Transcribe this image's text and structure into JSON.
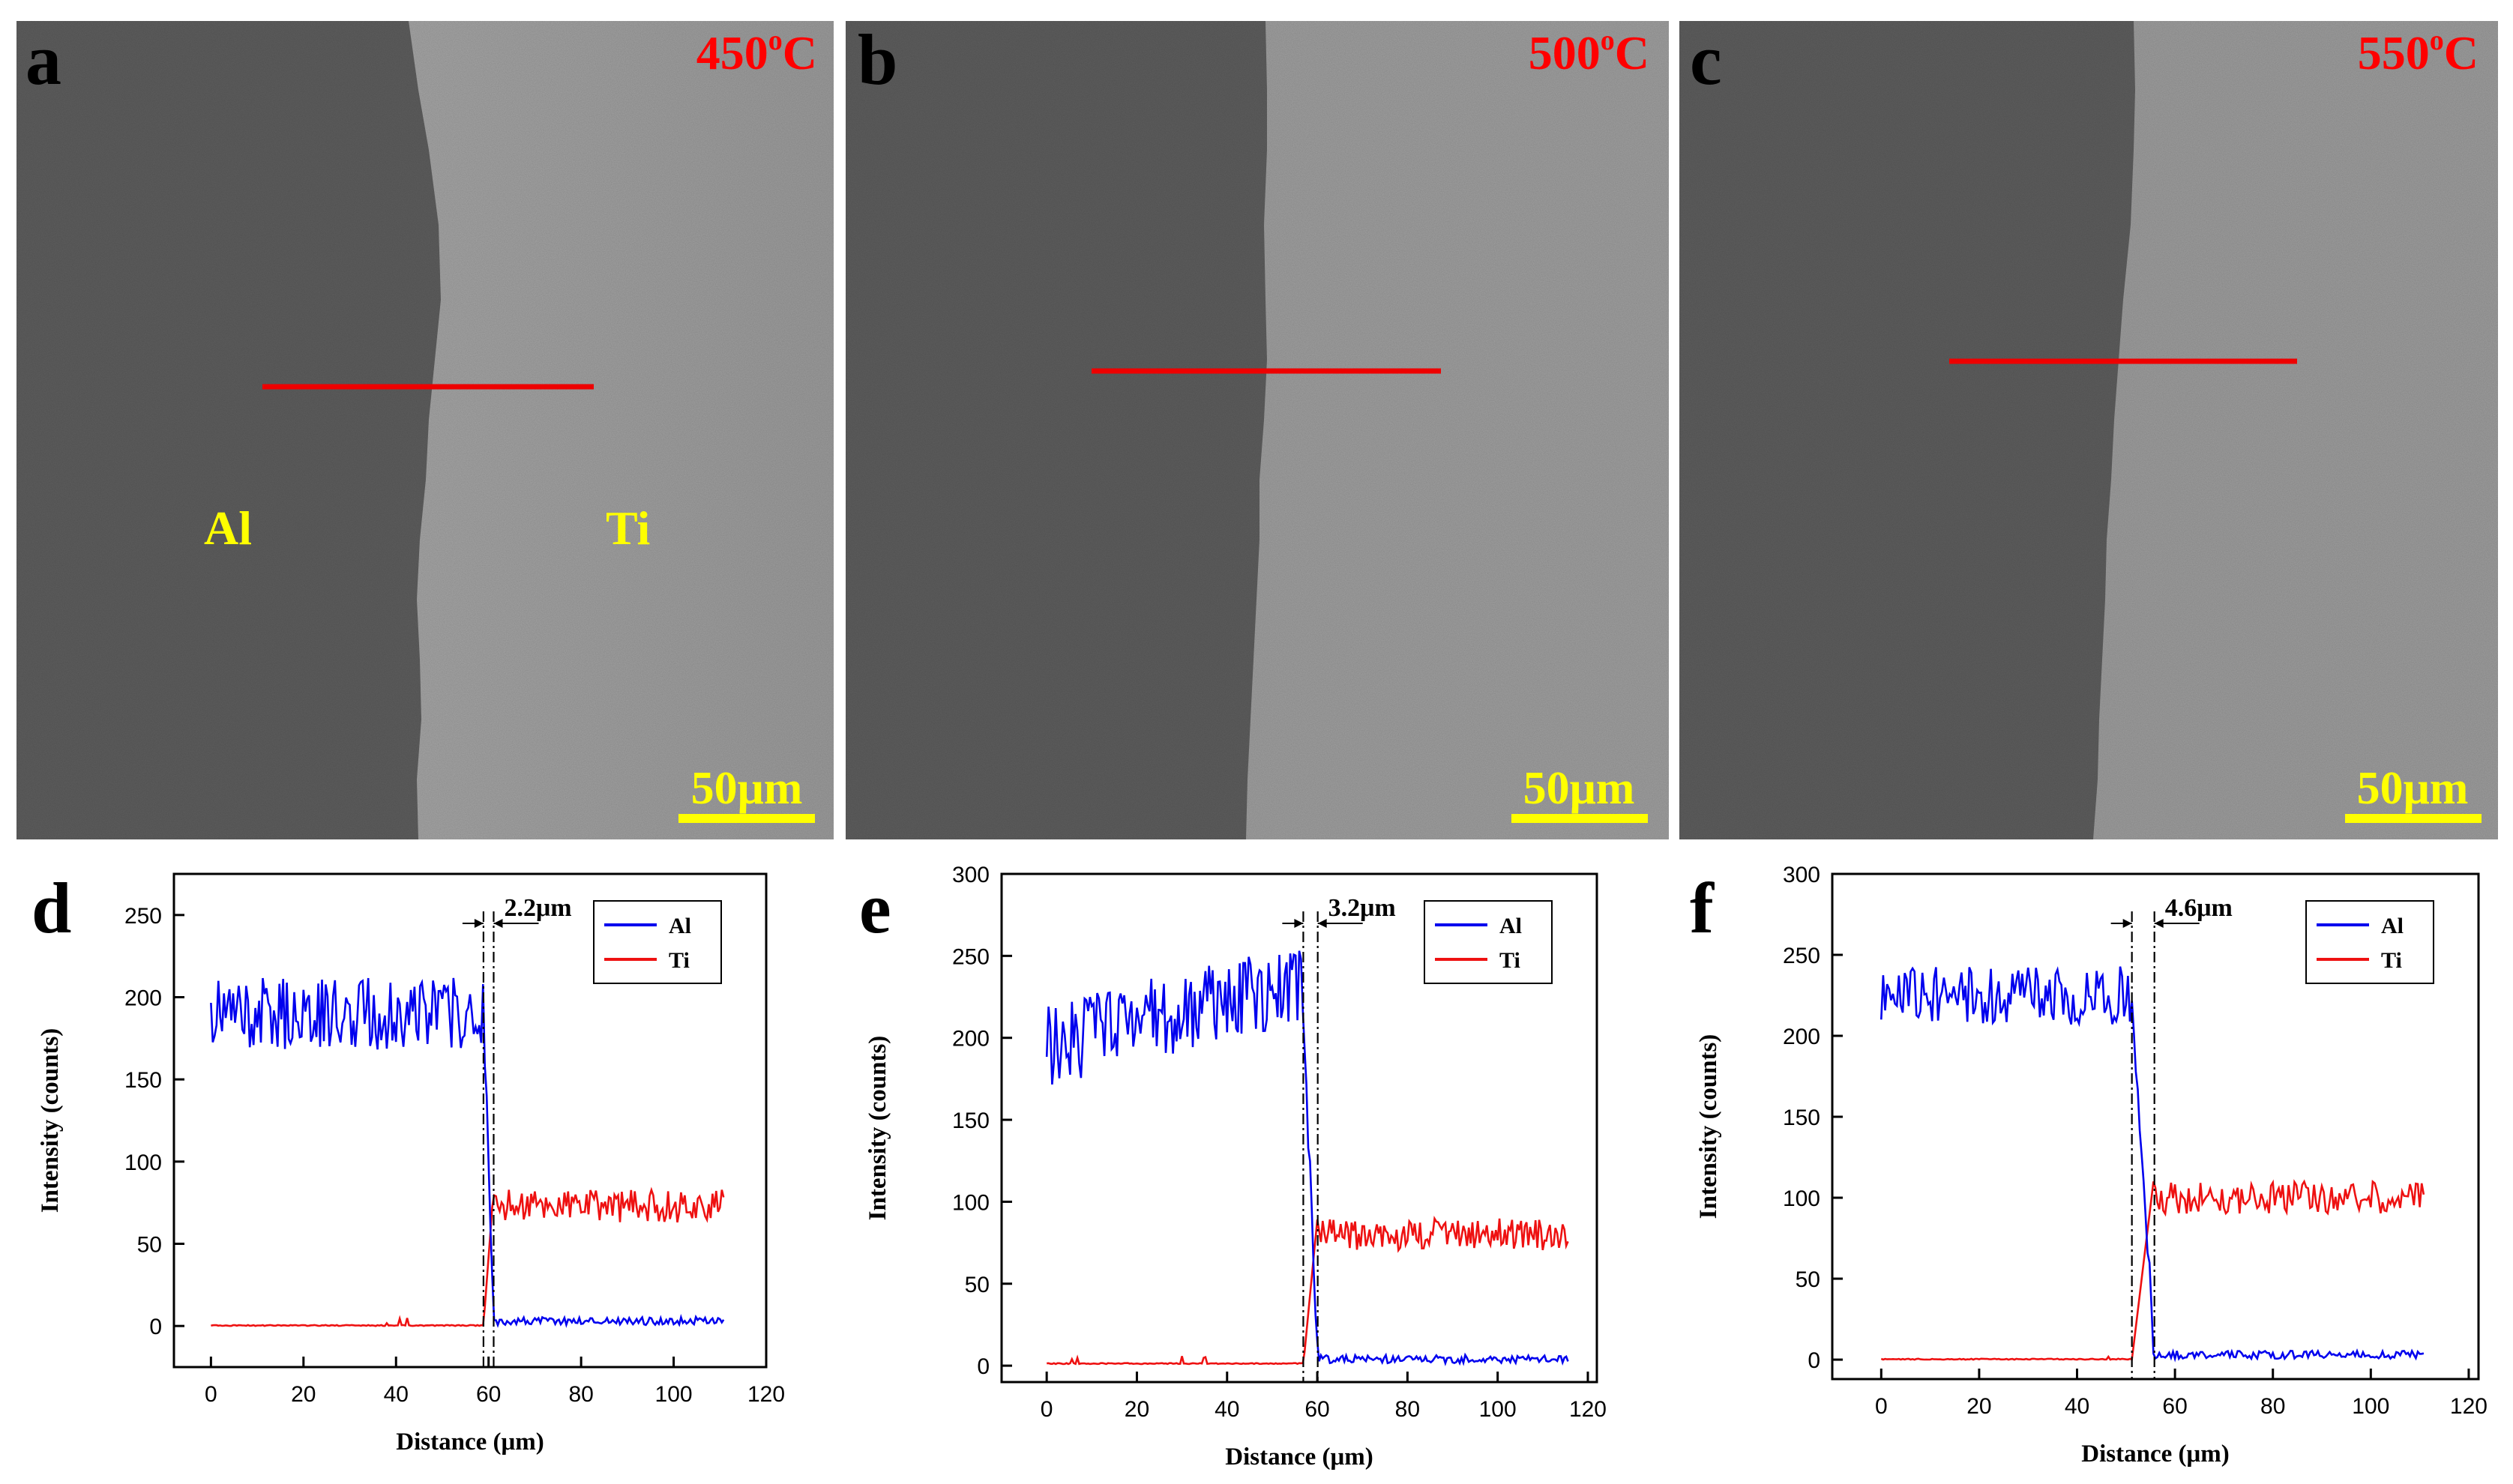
{
  "colors": {
    "al": "#0000ee",
    "ti": "#ee1111",
    "label": "#ff0000",
    "material_label": "#ffff00",
    "scalebar": "#ffff00",
    "line_scan": "#ee0000"
  },
  "panels_sem": [
    {
      "letter": "a",
      "temperature": "450°C",
      "temp_num": "450",
      "temp_sup": "o",
      "temp_unit": "C",
      "scalebar": "50μm",
      "materials": [
        "Al",
        "Ti"
      ]
    },
    {
      "letter": "b",
      "temperature": "500°C",
      "temp_num": "500",
      "temp_sup": "o",
      "temp_unit": "C",
      "scalebar": "50μm"
    },
    {
      "letter": "c",
      "temperature": "550°C",
      "temp_num": "550",
      "temp_sup": "o",
      "temp_unit": "C",
      "scalebar": "50μm"
    }
  ],
  "chart_data": [
    {
      "type": "line",
      "panel": "d",
      "xlabel": "Distance (μm)",
      "ylabel": "Intensity (counts)",
      "xlim": [
        -8,
        120
      ],
      "ylim": [
        -25,
        275
      ],
      "xticks": [
        0,
        20,
        40,
        60,
        80,
        100,
        120
      ],
      "yticks": [
        0,
        50,
        100,
        150,
        200,
        250
      ],
      "legend": [
        "Al",
        "Ti"
      ],
      "legend_position": "top-right",
      "interface_um": 60,
      "interface_width_um": 2.2,
      "annotation": "2.2μm",
      "x_max": 111,
      "al_left_mean": 190,
      "al_left_amp": 22,
      "al_right_mean": 3,
      "ti_left_mean": 0,
      "ti_right_mean": 73,
      "ti_right_amp": 10,
      "series": [
        {
          "name": "Al",
          "desc": "~190 counts for 0-58 μm, drops to ~3 counts after 61 μm"
        },
        {
          "name": "Ti",
          "desc": "~0 counts for 0-58 μm, rises to ~73 counts after 61 μm"
        }
      ]
    },
    {
      "type": "line",
      "panel": "e",
      "xlabel": "Distance (μm)",
      "ylabel": "Intensity (counts)",
      "xlim": [
        -10,
        122
      ],
      "ylim": [
        -10,
        300
      ],
      "xticks": [
        0,
        20,
        40,
        60,
        80,
        100,
        120
      ],
      "yticks": [
        0,
        50,
        100,
        150,
        200,
        250,
        300
      ],
      "legend": [
        "Al",
        "Ti"
      ],
      "legend_position": "top-right",
      "interface_um": 58.5,
      "interface_width_um": 3.2,
      "annotation": "3.2μm",
      "x_max": 116,
      "al_left_mean": 215,
      "al_left_amp": 25,
      "al_left_trend": "rising 195 to 235",
      "al_right_mean": 4,
      "ti_left_mean": 1,
      "ti_right_mean": 80,
      "ti_right_amp": 10,
      "series": [
        {
          "name": "Al",
          "desc": "rises from ~195 to ~235 counts over 0-57 μm, drops to ~4 counts after 60 μm"
        },
        {
          "name": "Ti",
          "desc": "~1 count for 0-57 μm, rises to ~80 counts after 60 μm"
        }
      ]
    },
    {
      "type": "line",
      "panel": "f",
      "xlabel": "Distance (μm)",
      "ylabel": "Intensity (counts)",
      "xlim": [
        -10,
        122
      ],
      "ylim": [
        -12,
        300
      ],
      "xticks": [
        0,
        20,
        40,
        60,
        80,
        100,
        120
      ],
      "yticks": [
        0,
        50,
        100,
        150,
        200,
        250,
        300
      ],
      "legend": [
        "Al",
        "Ti"
      ],
      "legend_position": "top-right",
      "interface_um": 53.5,
      "interface_width_um": 4.6,
      "annotation": "4.6μm",
      "x_max": 111,
      "al_left_mean": 225,
      "al_left_amp": 18,
      "al_right_mean": 3,
      "ti_left_mean": 0,
      "ti_right_mean": 100,
      "ti_right_amp": 10,
      "series": [
        {
          "name": "Al",
          "desc": "~225 counts for 0-51 μm, drops to ~3 counts after 56 μm"
        },
        {
          "name": "Ti",
          "desc": "~0 counts for 0-51 μm, rises to ~100 counts after 56 μm"
        }
      ]
    }
  ]
}
